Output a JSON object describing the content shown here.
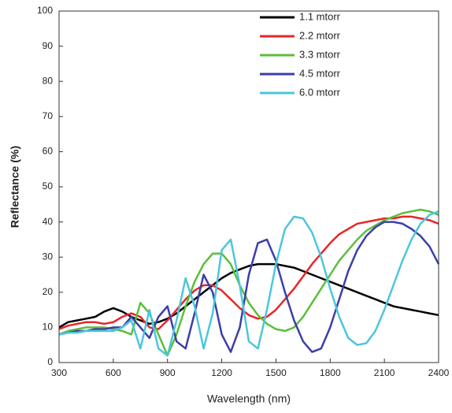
{
  "chart_data": {
    "type": "line",
    "x_label": "Wavelength (nm)",
    "y_label": "Reflectance (%)",
    "x": [
      300,
      350,
      400,
      450,
      500,
      550,
      600,
      650,
      700,
      750,
      800,
      850,
      900,
      950,
      1000,
      1050,
      1100,
      1150,
      1200,
      1250,
      1300,
      1350,
      1400,
      1450,
      1500,
      1550,
      1600,
      1650,
      1700,
      1750,
      1800,
      1850,
      1900,
      1950,
      2000,
      2050,
      2100,
      2150,
      2200,
      2250,
      2300,
      2350,
      2400
    ],
    "series": [
      {
        "name": "1.1 mtorr",
        "color": "#000000",
        "values": [
          10,
          11.5,
          12,
          12.5,
          13,
          14.5,
          15.5,
          14.5,
          13,
          12,
          11,
          11.5,
          12.5,
          14,
          16,
          18,
          20,
          22,
          24,
          25.5,
          26.5,
          27.5,
          28,
          28,
          28,
          27.5,
          27,
          26,
          25,
          24,
          23,
          22,
          21,
          20,
          19,
          18,
          17,
          16,
          15.5,
          15,
          14.5,
          14,
          13.5
        ]
      },
      {
        "name": "2.2 mtorr",
        "color": "#e8262a",
        "values": [
          9.5,
          10.5,
          11,
          11.5,
          11.5,
          11,
          11.5,
          13,
          14,
          13,
          10,
          9.5,
          12,
          15,
          18,
          20.5,
          22,
          22,
          20.5,
          18,
          15.5,
          13.5,
          12.5,
          13,
          15,
          18,
          21,
          24.5,
          28,
          31,
          34,
          36.5,
          38,
          39.5,
          40,
          40.5,
          41,
          41,
          41.5,
          41.5,
          41,
          40.5,
          39.5
        ]
      },
      {
        "name": "3.3 mtorr",
        "color": "#5bbf3a",
        "values": [
          8,
          9,
          9.5,
          10,
          10,
          10,
          9.5,
          9,
          8,
          17,
          14,
          8,
          2,
          8,
          16,
          23,
          28,
          31,
          31,
          28,
          22,
          17,
          13.5,
          11,
          9.5,
          9,
          10,
          13,
          17,
          21,
          25,
          29,
          32,
          35,
          37.5,
          39,
          40.5,
          41.5,
          42.5,
          43,
          43.5,
          43,
          42
        ]
      },
      {
        "name": "4.5 mtorr",
        "color": "#3b3fa8",
        "values": [
          8,
          8.5,
          9,
          9,
          9.5,
          9.5,
          10,
          10,
          13,
          10,
          7,
          13,
          16,
          6,
          4,
          14,
          25,
          20,
          8,
          3,
          10,
          25,
          34,
          35,
          29,
          20,
          12,
          6,
          3,
          4,
          10,
          18,
          26,
          32,
          36,
          38.5,
          40,
          40,
          39.5,
          38,
          36,
          33,
          28
        ]
      },
      {
        "name": "6.0 mtorr",
        "color": "#4cc6dc",
        "values": [
          8,
          8.5,
          8.5,
          9,
          9,
          9,
          9,
          10,
          12,
          4,
          15,
          4,
          2,
          12,
          24,
          16,
          4,
          14,
          32,
          35,
          22,
          6,
          4,
          15,
          28,
          38,
          41.5,
          41,
          37,
          30,
          21,
          13,
          7,
          5,
          5.5,
          9,
          15,
          22,
          29,
          35,
          39.5,
          42,
          43
        ]
      }
    ],
    "xlim": [
      300,
      2400
    ],
    "xticks": [
      300,
      600,
      900,
      1200,
      1500,
      1800,
      2100,
      2400
    ],
    "ylim": [
      0,
      100
    ],
    "yticks": [
      0,
      10,
      20,
      30,
      40,
      50,
      60,
      70,
      80,
      90,
      100
    ],
    "legend": "top"
  }
}
